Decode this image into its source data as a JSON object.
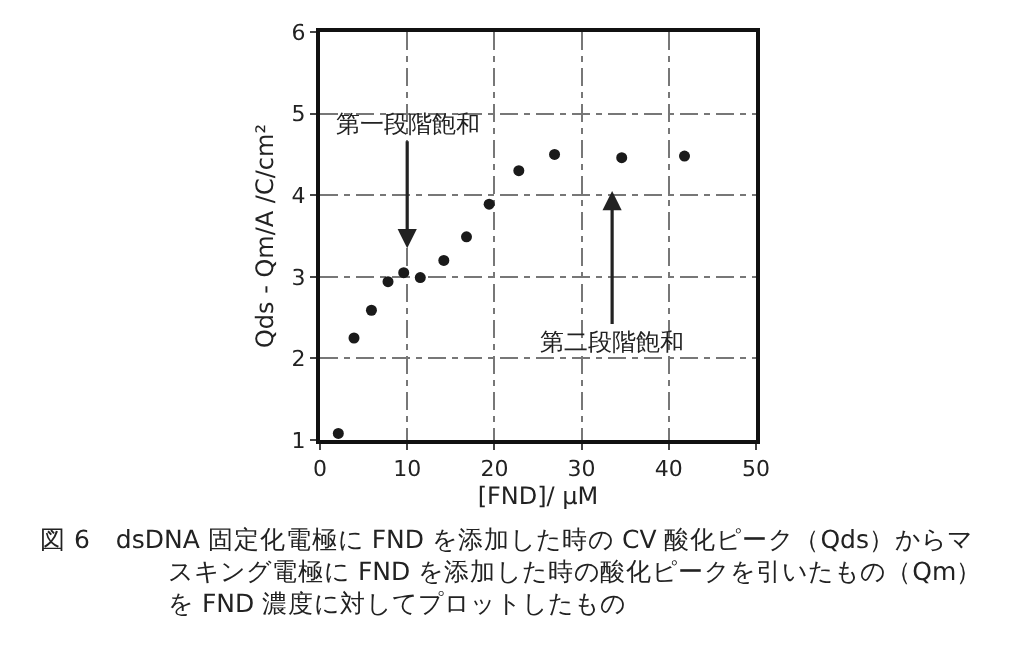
{
  "chart_data": {
    "type": "scatter",
    "xlabel": "[FND]/ μM",
    "ylabel": "Qds - Qm/A /C/cm²",
    "x": [
      2.1,
      3.9,
      5.9,
      7.8,
      9.6,
      11.5,
      14.2,
      16.8,
      19.4,
      22.8,
      26.9,
      34.6,
      41.8
    ],
    "series": [
      {
        "color": "#1a1a1a",
        "values": [
          1.08,
          2.25,
          2.59,
          2.94,
          3.05,
          2.99,
          3.2,
          3.49,
          3.89,
          4.3,
          4.5,
          4.46,
          4.48
        ]
      }
    ],
    "xlim": [
      0,
      50
    ],
    "xticks": [
      0,
      10,
      20,
      30,
      40,
      50
    ],
    "ylim": [
      1,
      6
    ],
    "yticks": [
      1,
      2,
      3,
      4,
      5,
      6
    ],
    "grid": true,
    "marker": "circle",
    "annotations": [
      "第一段階飽和",
      "第二段階飽和",
      "図 6　dsDNA 固定化電極に FND を添加した時の CV 酸化ピーク（Qds）からマスキング電極に FND を添加した時の酸化ピークを引いたもの（Qm）を FND 濃度に対してプロットしたもの"
    ]
  }
}
